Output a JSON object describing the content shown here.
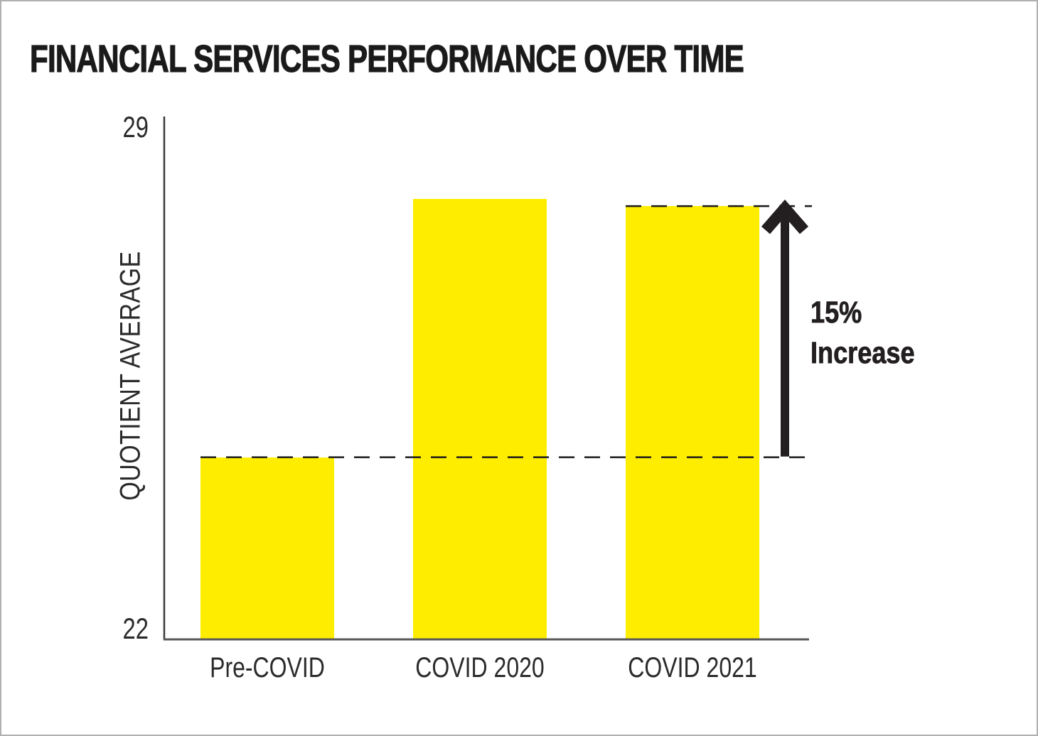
{
  "chart_data": {
    "type": "bar",
    "title": "FINANCIAL SERVICES PERFORMANCE OVER TIME",
    "categories": [
      "Pre-COVID",
      "COVID 2020",
      "COVID 2021"
    ],
    "values": [
      24.4,
      28.0,
      27.9
    ],
    "xlabel": "",
    "ylabel": "QUOTIENT AVERAGE",
    "ylim": [
      22,
      29
    ],
    "yticks": [
      22,
      29
    ],
    "grid": false,
    "legend": false,
    "bar_color": "#FFED00",
    "annotation": {
      "line1": "15%",
      "line2": "Increase"
    },
    "reference_lines": [
      {
        "style": "dashed",
        "at_value": 24.4
      },
      {
        "style": "dashed",
        "at_value": 27.9
      }
    ]
  },
  "colors": {
    "bar": "#FFED00",
    "text": "#231F20",
    "tick_text": "#2B2B2B",
    "y_axis": "#3A3A3A",
    "x_axis": "#58585B",
    "dashed_line": "#1A1A1A",
    "arrow": "#231F20",
    "border": "#B0B0B0",
    "background": "#FFFFFF"
  }
}
